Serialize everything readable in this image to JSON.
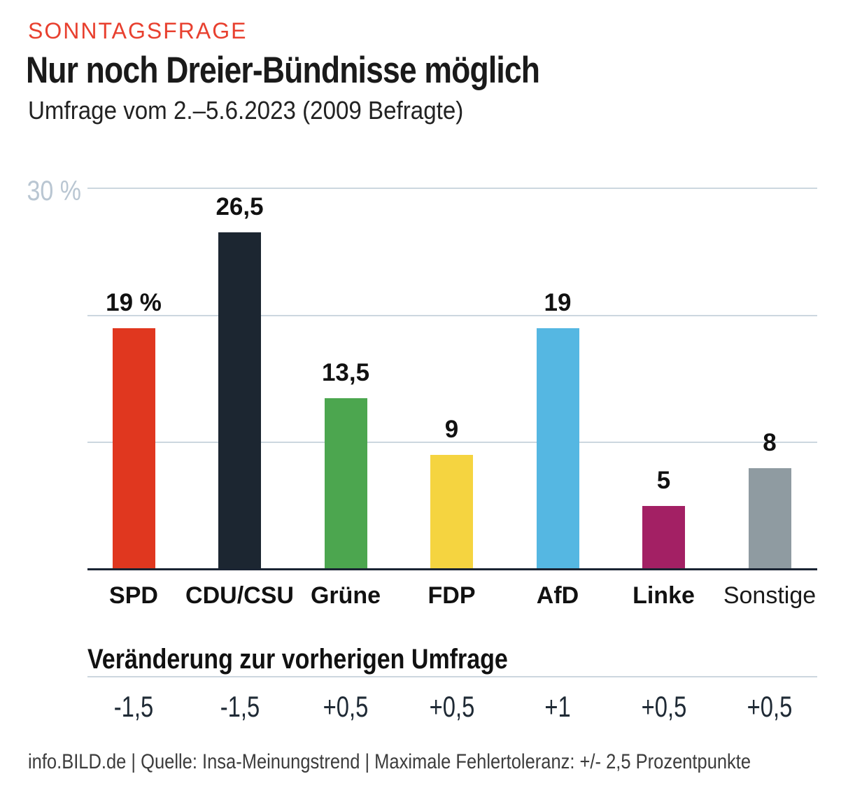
{
  "header": {
    "kicker": "SONNTAGSFRAGE",
    "title": "Nur noch Dreier-Bündnisse möglich",
    "subtitle": "Umfrage vom 2.–5.6.2023 (2009 Befragte)"
  },
  "chart_data": {
    "type": "bar",
    "title": "Nur noch Dreier-Bündnisse möglich",
    "subtitle": "Umfrage vom 2.–5.6.2023 (2009 Befragte)",
    "categories": [
      "SPD",
      "CDU/CSU",
      "Grüne",
      "FDP",
      "AfD",
      "Linke",
      "Sonstige"
    ],
    "values": [
      19,
      26.5,
      13.5,
      9,
      19,
      5,
      8
    ],
    "value_labels": [
      "19 %",
      "26,5",
      "13,5",
      "9",
      "19",
      "5",
      "8"
    ],
    "bar_colors": [
      "#e0371f",
      "#1c2631",
      "#4ca64f",
      "#f5d440",
      "#55b7e2",
      "#a32064",
      "#8f9ba1"
    ],
    "category_bold": [
      true,
      true,
      true,
      true,
      true,
      true,
      false
    ],
    "changes": [
      "-1,5",
      "-1,5",
      "+0,5",
      "+0,5",
      "+1",
      "+0,5",
      "+0,5"
    ],
    "xlabel": "",
    "ylabel": "%",
    "ylim": [
      0,
      30
    ],
    "ytick_label": "30 %",
    "gridlines_percent": [
      10,
      20,
      30
    ],
    "grid": true,
    "legend": "none"
  },
  "change_section": {
    "heading": "Veränderung zur vorherigen Umfrage"
  },
  "footer": {
    "text": "info.BILD.de | Quelle: Insa-Meinungstrend | Maximale Fehlertoleranz: +/- 2,5 Prozentpunkte"
  },
  "colors": {
    "kicker_red": "#e8402f",
    "spd_red": "#e0371f",
    "grid": "#ccd7df",
    "axis": "#1a2433",
    "ytick_label": "#b9c6d2",
    "text": "#111111"
  }
}
